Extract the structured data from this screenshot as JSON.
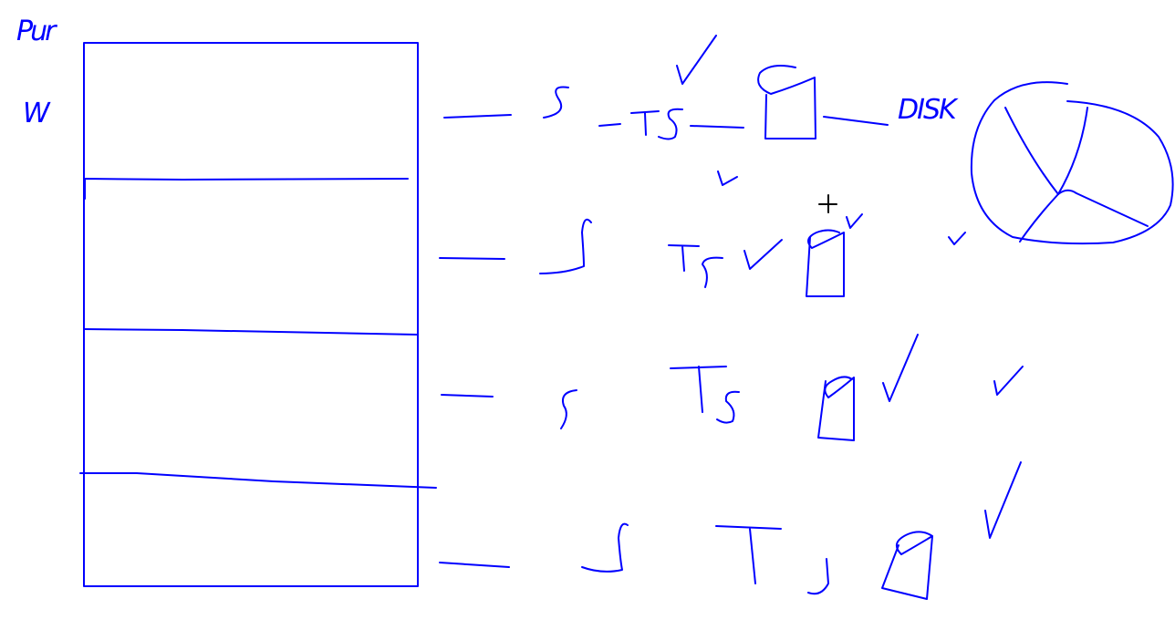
{
  "ink_color": "#0000ff",
  "labels": {
    "top_left": "Pur",
    "left_mark": "W",
    "disk": "DISK"
  },
  "cursor_icon": "crosshair-cursor-icon"
}
